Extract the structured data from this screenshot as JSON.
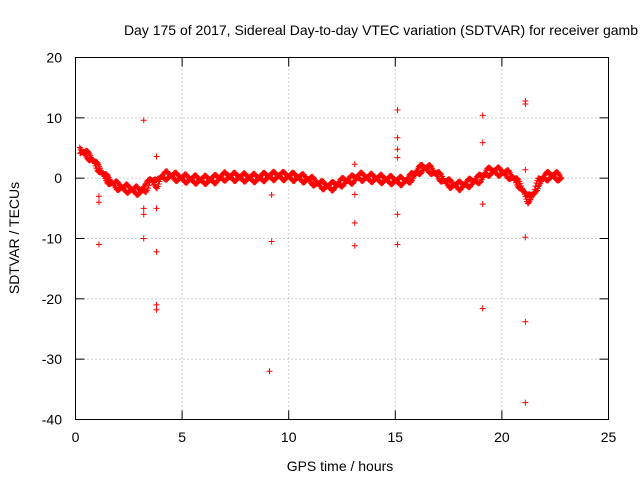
{
  "chart_data": {
    "type": "scatter",
    "title": "Day 175 of 2017, Sidereal Day-to-day VTEC variation (SDTVAR) for receiver gamb",
    "xlabel": "GPS time / hours",
    "ylabel": "SDTVAR / TECUs",
    "xlim": [
      0,
      25
    ],
    "ylim": [
      -40,
      20
    ],
    "xticks": [
      0,
      5,
      10,
      15,
      20,
      25
    ],
    "yticks": [
      -40,
      -30,
      -20,
      -10,
      0,
      10,
      20
    ],
    "x_tick_labels": [
      "0",
      "5",
      "10",
      "15",
      "20",
      "25"
    ],
    "y_tick_labels": [
      "-40",
      "-30",
      "-20",
      "-10",
      "0",
      "10",
      "20"
    ],
    "grid": true,
    "marker": "plus",
    "color": "#ff0000",
    "series": [
      {
        "name": "SDTVAR",
        "curve": {
          "x": [
            0.2,
            0.5,
            0.8,
            1.0,
            1.3,
            1.6,
            1.9,
            2.2,
            2.5,
            2.8,
            3.0,
            3.3,
            3.5,
            3.8,
            4.0,
            4.3,
            4.6,
            5.0,
            5.5,
            6.0,
            6.5,
            7.0,
            7.5,
            8.0,
            8.5,
            9.0,
            9.5,
            10.0,
            10.5,
            11.0,
            11.3,
            11.6,
            12.0,
            12.3,
            12.6,
            13.0,
            13.3,
            13.6,
            14.0,
            14.5,
            15.0,
            15.3,
            15.6,
            16.0,
            16.3,
            16.6,
            17.0,
            17.3,
            17.6,
            18.0,
            18.3,
            18.6,
            19.0,
            19.3,
            19.6,
            20.0,
            20.3,
            20.6,
            20.9,
            21.2,
            21.5,
            21.7,
            22.0,
            22.3,
            22.6,
            22.8
          ],
          "y": [
            4.6,
            4.0,
            3.0,
            2.0,
            0.6,
            -0.6,
            -1.2,
            -1.6,
            -1.8,
            -2.0,
            -2.2,
            -1.6,
            -0.2,
            -1.0,
            0.2,
            0.5,
            0.3,
            0.0,
            -0.2,
            -0.3,
            -0.2,
            0.3,
            0.2,
            0.1,
            0.0,
            0.3,
            0.4,
            0.3,
            0.1,
            -0.3,
            -0.8,
            -1.2,
            -1.4,
            -1.0,
            -0.5,
            -0.2,
            0.3,
            0.1,
            0.0,
            -0.2,
            -0.4,
            -0.5,
            -0.3,
            1.0,
            1.8,
            1.5,
            0.5,
            -0.5,
            -1.0,
            -1.3,
            -1.0,
            -0.6,
            0.0,
            1.0,
            1.2,
            1.0,
            0.6,
            -0.2,
            -1.5,
            -3.5,
            -2.5,
            -0.7,
            0.2,
            0.5,
            0.3,
            0.0
          ]
        },
        "outliers": {
          "x": [
            1.1,
            1.1,
            1.1,
            3.2,
            3.2,
            3.2,
            3.2,
            3.8,
            3.8,
            3.8,
            3.8,
            3.8,
            9.1,
            9.2,
            9.2,
            13.1,
            13.1,
            13.1,
            13.1,
            15.1,
            15.1,
            15.1,
            15.1,
            15.1,
            15.1,
            19.1,
            19.1,
            19.1,
            19.1,
            21.1,
            21.1,
            21.1,
            21.1,
            21.1,
            21.1
          ],
          "y": [
            -11,
            -3,
            -4,
            9.6,
            -5,
            -6,
            -10,
            3.6,
            -5,
            -12.2,
            -21,
            -21.8,
            -32,
            -2.8,
            -10.5,
            2.3,
            -2.7,
            -7.4,
            -11.2,
            11.3,
            6.7,
            4.8,
            3.4,
            -6,
            -11,
            10.4,
            5.9,
            -4.3,
            -21.6,
            12.8,
            12.3,
            1.4,
            -9.8,
            -23.8,
            -37.2
          ]
        }
      }
    ]
  }
}
